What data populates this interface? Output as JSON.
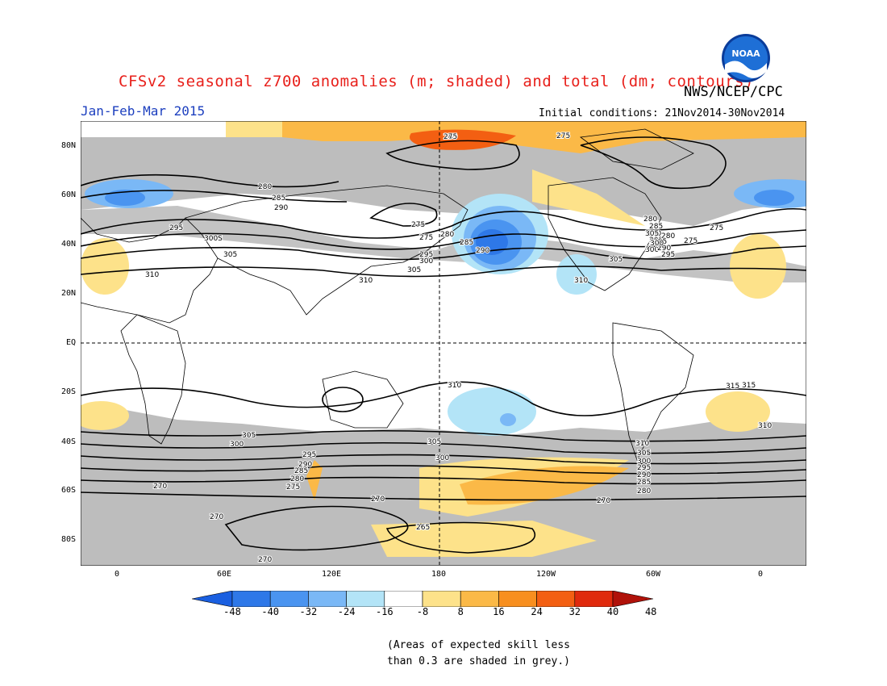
{
  "header": {
    "title": "CFSv2 seasonal z700 anomalies (m; shaded) and total (dm; contours)",
    "organization": "NWS/NCEP/CPC",
    "logo_text": "NOAA",
    "period": "Jan-Feb-Mar 2015",
    "initial_conditions": "Initial conditions: 21Nov2014-30Nov2014"
  },
  "map": {
    "lat_labels": [
      "80N",
      "60N",
      "40N",
      "20N",
      "EQ",
      "20S",
      "40S",
      "60S",
      "80S"
    ],
    "lon_labels": [
      "0",
      "60E",
      "120E",
      "180",
      "120W",
      "60W",
      "0"
    ],
    "contour_labels": [
      "280",
      "275",
      "275",
      "275",
      "280",
      "285",
      "290",
      "295",
      "300S",
      "305",
      "310",
      "275",
      "280",
      "285",
      "290",
      "295",
      "300",
      "305",
      "310",
      "310",
      "305",
      "300",
      "295",
      "290",
      "285",
      "280",
      "280",
      "285",
      "290",
      "295",
      "300",
      "305",
      "275",
      "310",
      "315",
      "310",
      "305",
      "300",
      "305",
      "300",
      "295",
      "290",
      "285",
      "280",
      "275",
      "270",
      "270",
      "270",
      "270",
      "265",
      "270",
      "315",
      "310",
      "305",
      "300",
      "295",
      "290",
      "285",
      "280",
      "275"
    ],
    "colors": {
      "skill_grey": "#bdbdbd",
      "land_outline": "#000000",
      "contour": "#000000"
    }
  },
  "colorbar": {
    "labels": [
      "-48",
      "-40",
      "-32",
      "-24",
      "-16",
      "-8",
      "8",
      "16",
      "24",
      "32",
      "40",
      "48"
    ],
    "colors": [
      "#1a5fe0",
      "#2e78e8",
      "#4a94f0",
      "#7ab8f6",
      "#b3e4f7",
      "#ffffff",
      "#fde28a",
      "#fbb947",
      "#f88f1f",
      "#f35f12",
      "#e02a0d",
      "#b0120a"
    ]
  },
  "note": {
    "line1": "(Areas of expected skill less",
    "line2": "than 0.3 are shaded in grey.)"
  }
}
